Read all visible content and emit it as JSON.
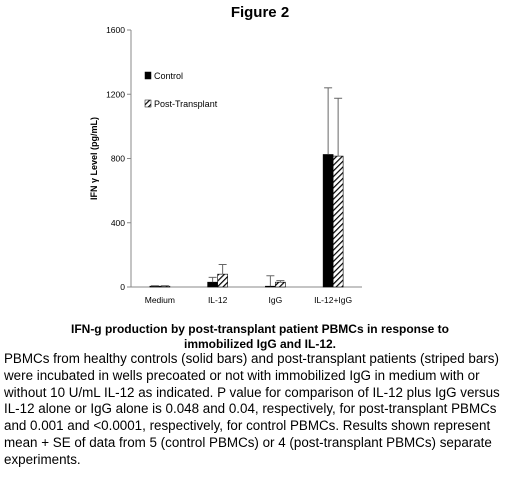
{
  "figure_title": "Figure 2",
  "caption_title": "IFN-g production by post-transplant patient PBMCs in response to immobilized IgG and IL-12.",
  "caption_body": "PBMCs from healthy controls (solid bars) and post-transplant patients (striped bars) were incubated in wells precoated or not with immobilized IgG in medium with or without 10 U/mL IL-12 as indicated.  P value for comparison of IL-12 plus IgG versus IL-12 alone or IgG alone is 0.048 and 0.04, respectively, for post-transplant PBMCs and 0.001 and <0.0001, respectively, for control PBMCs.  Results shown represent mean + SE of data from 5 (control PBMCs) or 4 (post-transplant PBMCs) separate experiments.",
  "chart_data": {
    "type": "bar",
    "ylabel": "IFN γ Level (pg/mL)",
    "ylim": [
      0,
      1600
    ],
    "yticks": [
      "0",
      "400",
      "800",
      "1200",
      "1600"
    ],
    "categories": [
      "Medium",
      "IL-12",
      "IgG",
      "IL-12+IgG"
    ],
    "legend_position": "top-left",
    "series": [
      {
        "name": "Control",
        "pattern": "solid",
        "color": "#000000",
        "values": [
          5,
          30,
          5,
          825
        ],
        "errors": [
          3,
          30,
          65,
          415
        ]
      },
      {
        "name": "Post-Transplant",
        "pattern": "striped",
        "color": "#000000",
        "values": [
          5,
          80,
          30,
          815
        ],
        "errors": [
          3,
          60,
          10,
          360
        ]
      }
    ]
  }
}
